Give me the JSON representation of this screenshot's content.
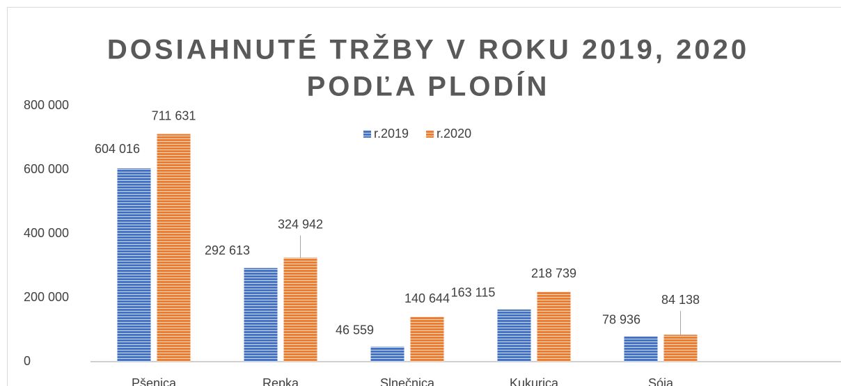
{
  "chart_data": {
    "type": "bar",
    "title": [
      "DOSIAHNUTÉ TRŽBY V ROKU 2019, 2020",
      "PODĽA PLODÍN"
    ],
    "categories": [
      "Pšenica",
      "Repka",
      "Slnečnica",
      "Kukurica",
      "Sója"
    ],
    "series": [
      {
        "name": "r.2019",
        "color": "#4472c4",
        "values": [
          604016,
          292613,
          46559,
          163115,
          78936
        ],
        "value_labels": [
          "604 016",
          "292 613",
          "46 559",
          "163 115",
          "78 936"
        ]
      },
      {
        "name": "r.2020",
        "color": "#ed7d31",
        "values": [
          711631,
          324942,
          140644,
          218739,
          84138
        ],
        "value_labels": [
          "711 631",
          "324 942",
          "140 644",
          "218 739",
          "84 138"
        ]
      }
    ],
    "ylim": [
      0,
      800000
    ],
    "yticks": [
      {
        "value": 0,
        "label": "0"
      },
      {
        "value": 200000,
        "label": "200 000"
      },
      {
        "value": 400000,
        "label": "400 000"
      },
      {
        "value": 600000,
        "label": "600 000"
      },
      {
        "value": 800000,
        "label": "800 000"
      }
    ],
    "legend": "top"
  }
}
